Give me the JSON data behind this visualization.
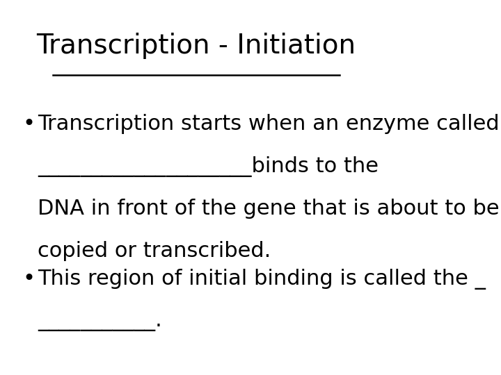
{
  "title": "Transcription - Initiation",
  "title_fontsize": 28,
  "title_fontfamily": "DejaVu Sans",
  "background_color": "#ffffff",
  "text_color": "#000000",
  "bullet1_line1": "Transcription starts when an enzyme called",
  "bullet1_line2": "____________________binds to the",
  "bullet1_line3": "DNA in front of the gene that is about to be",
  "bullet1_line4": "copied or transcribed.",
  "bullet2_line1": "This region of initial binding is called the _",
  "bullet2_line2": "___________.",
  "bullet_fontsize": 22,
  "bullet_fontfamily": "DejaVu Sans",
  "figwidth": 7.2,
  "figheight": 5.4,
  "dpi": 100
}
